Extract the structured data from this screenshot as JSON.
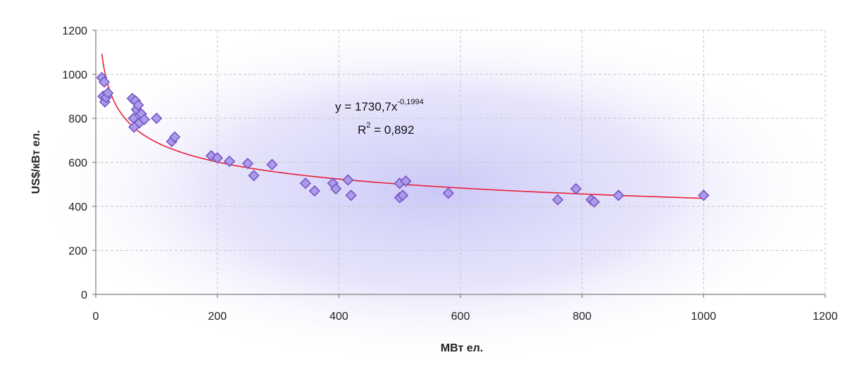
{
  "chart_data": {
    "type": "scatter",
    "xlabel": "МВт ел.",
    "ylabel": "US$/кВт ел.",
    "xlim": [
      0,
      1200
    ],
    "ylim": [
      0,
      1200
    ],
    "x_ticks": [
      0,
      200,
      400,
      600,
      800,
      1000,
      1200
    ],
    "y_ticks": [
      0,
      200,
      400,
      600,
      800,
      1000,
      1200
    ],
    "grid": true,
    "legend": "none",
    "colors": {
      "marker_fill": "#a99de8",
      "marker_stroke": "#7a55c8",
      "trendline": "#e8203a",
      "background_glow": "#c9c6f7"
    },
    "trendline": {
      "type": "power",
      "coefficient": 1730.7,
      "exponent": -0.1994,
      "x_range": [
        10,
        1000
      ],
      "equation_main": "y = 1730,7x",
      "equation_exponent": "-0,1994",
      "r2_main": "R",
      "r2_exponent": "2",
      "r2_value": " = 0,892"
    },
    "points": [
      {
        "x": 10,
        "y": 985
      },
      {
        "x": 12,
        "y": 900
      },
      {
        "x": 14,
        "y": 965
      },
      {
        "x": 15,
        "y": 875
      },
      {
        "x": 17,
        "y": 895
      },
      {
        "x": 20,
        "y": 915
      },
      {
        "x": 60,
        "y": 890
      },
      {
        "x": 62,
        "y": 800
      },
      {
        "x": 63,
        "y": 760
      },
      {
        "x": 65,
        "y": 880
      },
      {
        "x": 67,
        "y": 840
      },
      {
        "x": 70,
        "y": 860
      },
      {
        "x": 72,
        "y": 780
      },
      {
        "x": 75,
        "y": 820
      },
      {
        "x": 80,
        "y": 795
      },
      {
        "x": 100,
        "y": 800
      },
      {
        "x": 125,
        "y": 695
      },
      {
        "x": 130,
        "y": 715
      },
      {
        "x": 190,
        "y": 630
      },
      {
        "x": 200,
        "y": 620
      },
      {
        "x": 220,
        "y": 605
      },
      {
        "x": 250,
        "y": 595
      },
      {
        "x": 260,
        "y": 540
      },
      {
        "x": 290,
        "y": 590
      },
      {
        "x": 345,
        "y": 505
      },
      {
        "x": 360,
        "y": 470
      },
      {
        "x": 390,
        "y": 505
      },
      {
        "x": 395,
        "y": 480
      },
      {
        "x": 415,
        "y": 520
      },
      {
        "x": 420,
        "y": 450
      },
      {
        "x": 500,
        "y": 505
      },
      {
        "x": 500,
        "y": 440
      },
      {
        "x": 505,
        "y": 450
      },
      {
        "x": 510,
        "y": 515
      },
      {
        "x": 580,
        "y": 460
      },
      {
        "x": 760,
        "y": 430
      },
      {
        "x": 790,
        "y": 480
      },
      {
        "x": 815,
        "y": 430
      },
      {
        "x": 820,
        "y": 420
      },
      {
        "x": 860,
        "y": 450
      },
      {
        "x": 1000,
        "y": 450
      }
    ]
  }
}
